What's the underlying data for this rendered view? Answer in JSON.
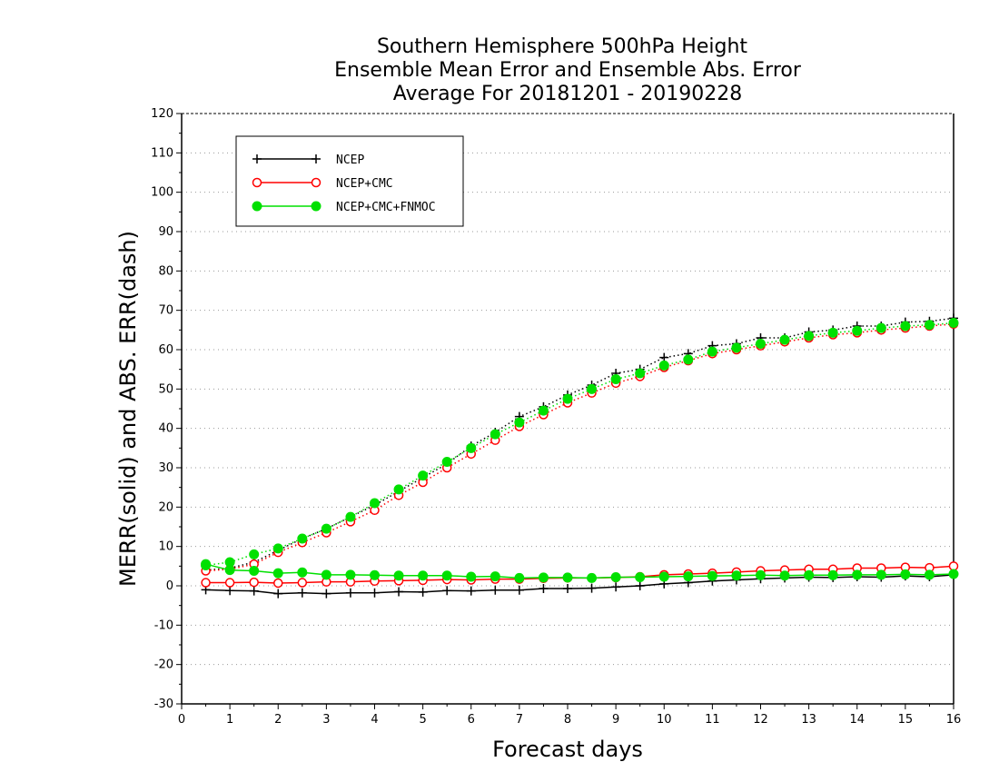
{
  "chart_data": {
    "type": "line",
    "title": [
      "Southern Hemisphere 500hPa Height",
      "Ensemble Mean Error and Ensemble Abs. Error",
      "Average For 20181201 - 20190228"
    ],
    "xlabel": "Forecast days",
    "ylabel": "MERR(solid) and ABS. ERR(dash)",
    "xlim": [
      0,
      16
    ],
    "ylim": [
      -30,
      120
    ],
    "xticks": [
      "0",
      "1",
      "2",
      "3",
      "4",
      "5",
      "6",
      "7",
      "8",
      "9",
      "10",
      "11",
      "12",
      "13",
      "14",
      "15",
      "16"
    ],
    "yticks": [
      "-30",
      "-20",
      "-10",
      "0",
      "10",
      "20",
      "30",
      "40",
      "50",
      "60",
      "70",
      "80",
      "90",
      "100",
      "110",
      "120"
    ],
    "grid": "horizontal dotted",
    "legend_position": "top-left",
    "x": [
      0.5,
      1,
      1.5,
      2,
      2.5,
      3,
      3.5,
      4,
      4.5,
      5,
      5.5,
      6,
      6.5,
      7,
      7.5,
      8,
      8.5,
      9,
      9.5,
      10,
      10.5,
      11,
      11.5,
      12,
      12.5,
      13,
      13.5,
      14,
      14.5,
      15,
      15.5,
      16
    ],
    "series": [
      {
        "name": "NCEP",
        "color": "#000000",
        "marker": "plus",
        "merr": [
          -1,
          -1.2,
          -1.3,
          -2,
          -1.8,
          -2,
          -1.8,
          -1.8,
          -1.5,
          -1.6,
          -1.2,
          -1.3,
          -1.1,
          -1.1,
          -0.7,
          -0.7,
          -0.6,
          -0.3,
          0,
          0.5,
          0.8,
          1.2,
          1.5,
          1.8,
          2,
          2.2,
          2.1,
          2.3,
          2.2,
          2.5,
          2.3,
          2.8
        ],
        "abserr": [
          4,
          4.5,
          6,
          9,
          12,
          14.5,
          17.5,
          20.5,
          24,
          27.5,
          31,
          35.5,
          39,
          43,
          45.5,
          48.5,
          51,
          54,
          55,
          58,
          59,
          61,
          61.5,
          63,
          63,
          64.5,
          65,
          66,
          66,
          67,
          67.2,
          68
        ]
      },
      {
        "name": "NCEP+CMC",
        "color": "#ff0000",
        "marker": "circle-open",
        "merr": [
          0.8,
          0.8,
          0.9,
          0.7,
          0.8,
          1,
          1,
          1.2,
          1.3,
          1.4,
          1.6,
          1.5,
          1.7,
          1.7,
          1.9,
          2,
          2,
          2.1,
          2.3,
          2.8,
          3,
          3.2,
          3.5,
          3.8,
          4,
          4.2,
          4.2,
          4.5,
          4.5,
          4.7,
          4.6,
          5
        ],
        "abserr": [
          3.8,
          4.2,
          5.5,
          8.5,
          11,
          13.5,
          16.3,
          19.2,
          23,
          26.3,
          30,
          33.5,
          37,
          40.5,
          43.5,
          46.5,
          49,
          51.5,
          53.2,
          55.5,
          57.2,
          59,
          60,
          61,
          62,
          63,
          63.8,
          64.3,
          65,
          65.5,
          66,
          66.5
        ]
      },
      {
        "name": "NCEP+CMC+FNMOC",
        "color": "#00e000",
        "marker": "circle-filled",
        "merr": [
          5.5,
          4,
          3.8,
          3.2,
          3.4,
          2.8,
          2.8,
          2.7,
          2.6,
          2.6,
          2.6,
          2.3,
          2.4,
          2,
          2.1,
          2.1,
          2,
          2.2,
          2.2,
          2.3,
          2.4,
          2.5,
          2.6,
          2.7,
          2.6,
          2.7,
          2.7,
          2.8,
          2.8,
          2.9,
          2.8,
          3
        ],
        "abserr": [
          5.2,
          6,
          8,
          9.5,
          12,
          14.5,
          17.5,
          21,
          24.5,
          28,
          31.5,
          35,
          38.5,
          41.5,
          44.5,
          47.5,
          50,
          52.5,
          54,
          56,
          57.5,
          59.5,
          60.5,
          61.5,
          62.5,
          63.5,
          64.3,
          64.8,
          65.5,
          66,
          66.3,
          66.8
        ]
      }
    ]
  },
  "legend": {
    "items": [
      {
        "label": "NCEP"
      },
      {
        "label": "NCEP+CMC"
      },
      {
        "label": "NCEP+CMC+FNMOC"
      }
    ]
  }
}
